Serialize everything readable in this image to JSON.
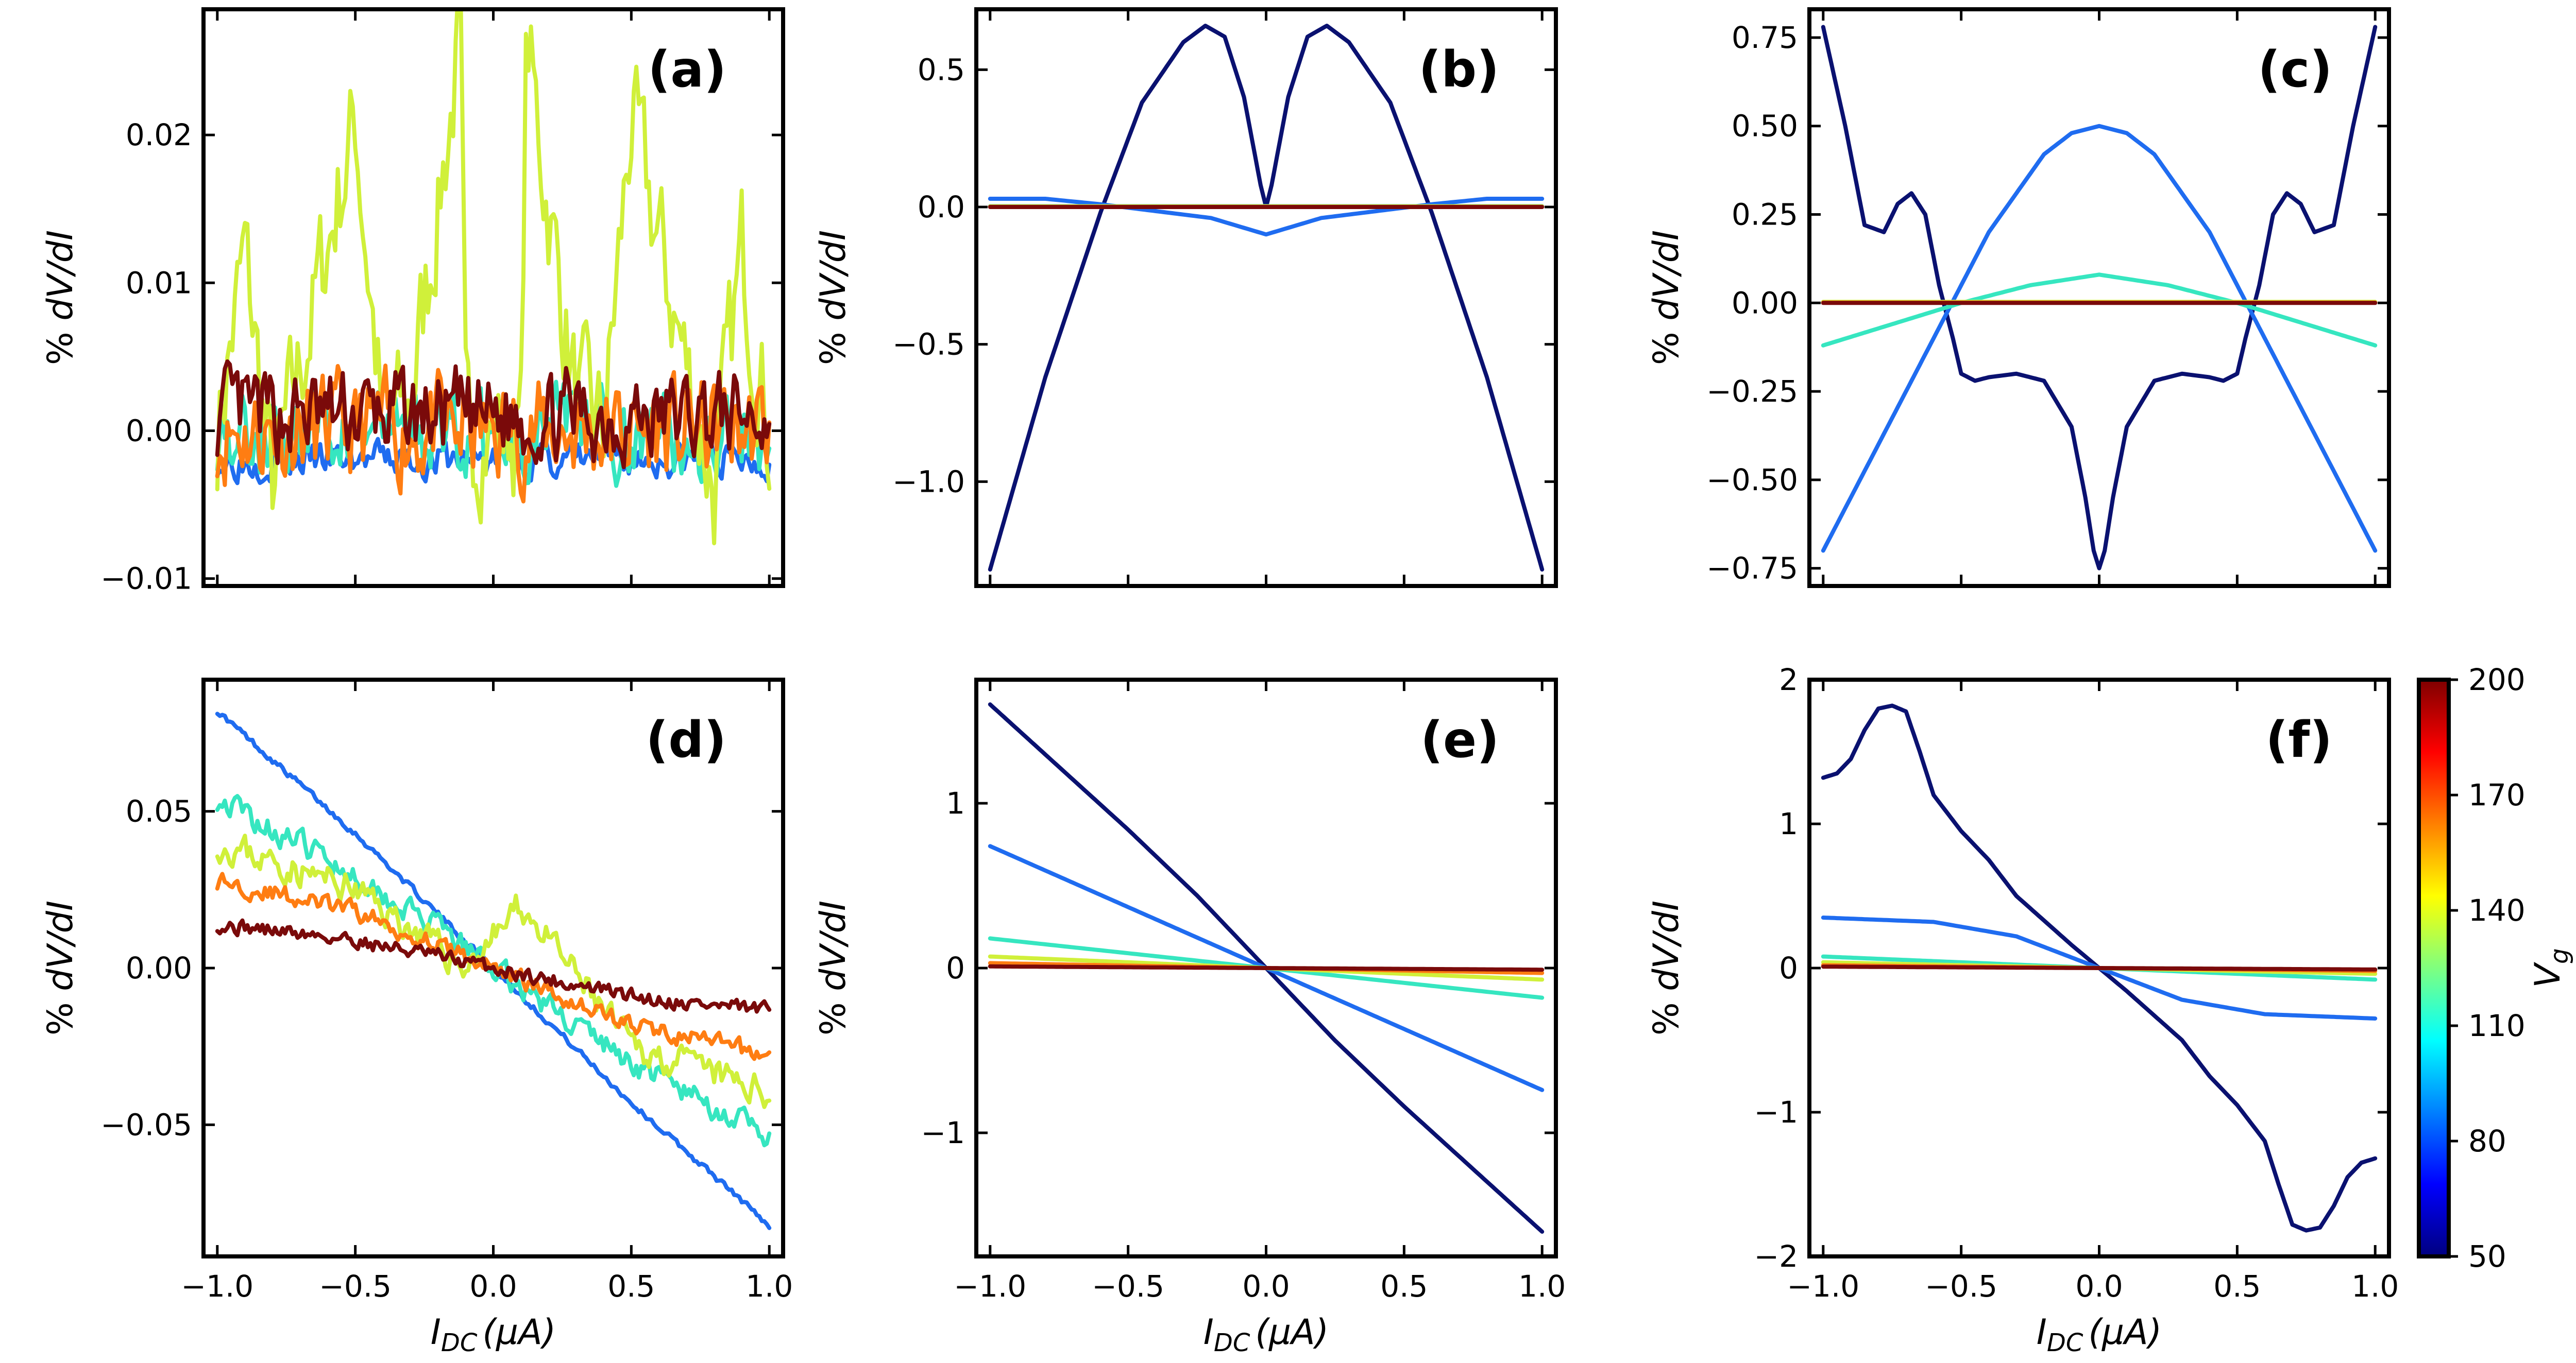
{
  "figure": {
    "colorbar": {
      "label": "V",
      "label_sub": "g",
      "ticks": [
        50,
        80,
        110,
        140,
        170,
        200
      ],
      "range": [
        50,
        200
      ],
      "colormap": "jet"
    },
    "series_colors": {
      "Vg_50": "#0a1170",
      "Vg_80": "#1f6cf0",
      "Vg_110": "#36e6c0",
      "Vg_140": "#d0f03a",
      "Vg_170": "#ff7d12",
      "Vg_200": "#7a0a0a"
    }
  },
  "chart_data": [
    {
      "id": "a",
      "type": "line",
      "panel_label": "(a)",
      "ylabel": "% dV/dI",
      "xlabel": "",
      "xlim": [
        -1.05,
        1.05
      ],
      "ylim": [
        -0.0105,
        0.0285
      ],
      "xticks": [
        -1.0,
        -0.5,
        0.0,
        0.5,
        1.0
      ],
      "xticklabels": [
        "",
        "",
        "",
        "",
        ""
      ],
      "yticks": [
        -0.01,
        0.0,
        0.01,
        0.02
      ],
      "yticklabels": [
        "−0.01",
        "0.00",
        "0.01",
        "0.02"
      ],
      "series": [
        {
          "name": "Vg=80",
          "color_key": "Vg_80",
          "amp": 0.0012,
          "seed": 3,
          "x": [
            -1.0,
            1.0
          ],
          "y": [
            -0.002,
            -0.002
          ]
        },
        {
          "name": "Vg=110",
          "color_key": "Vg_110",
          "amp": 0.003,
          "seed": 5,
          "x": [
            -1.0,
            1.0
          ],
          "y": [
            0.0,
            0.0
          ]
        },
        {
          "name": "Vg=140",
          "color_key": "Vg_140",
          "amp": 0.0045,
          "seed": 7,
          "x": [
            -1.0,
            -0.9,
            -0.8,
            -0.5,
            -0.4,
            -0.3,
            -0.15,
            -0.12,
            -0.1,
            0.1,
            0.12,
            0.15,
            0.3,
            0.4,
            0.5,
            0.8,
            0.9,
            1.0
          ],
          "y": [
            0.0,
            0.012,
            -0.004,
            0.021,
            0.0,
            0.002,
            0.022,
            0.027,
            0.0,
            0.0,
            0.027,
            0.022,
            0.002,
            0.0,
            0.021,
            -0.004,
            0.012,
            0.0
          ]
        },
        {
          "name": "Vg=170",
          "color_key": "Vg_170",
          "amp": 0.0035,
          "seed": 11,
          "x": [
            -1.0,
            1.0
          ],
          "y": [
            0.0,
            0.0
          ]
        },
        {
          "name": "Vg=200",
          "color_key": "Vg_200",
          "amp": 0.003,
          "seed": 13,
          "x": [
            -1.0,
            1.0
          ],
          "y": [
            0.001,
            0.001
          ]
        }
      ]
    },
    {
      "id": "b",
      "type": "line",
      "panel_label": "(b)",
      "ylabel": "% dV/dI",
      "xlabel": "",
      "xlim": [
        -1.05,
        1.05
      ],
      "ylim": [
        -1.38,
        0.72
      ],
      "xticks": [
        -1.0,
        -0.5,
        0.0,
        0.5,
        1.0
      ],
      "xticklabels": [
        "",
        "",
        "",
        "",
        ""
      ],
      "yticks": [
        -1.0,
        -0.5,
        0.0,
        0.5
      ],
      "yticklabels": [
        "−1.0",
        "−0.5",
        "0.0",
        "0.5"
      ],
      "series": [
        {
          "name": "Vg=50",
          "color_key": "Vg_50",
          "x": [
            -1.0,
            -0.8,
            -0.6,
            -0.45,
            -0.3,
            -0.22,
            -0.15,
            -0.08,
            -0.02,
            0.0,
            0.02,
            0.08,
            0.15,
            0.22,
            0.3,
            0.45,
            0.6,
            0.8,
            1.0
          ],
          "y": [
            -1.32,
            -0.62,
            -0.02,
            0.38,
            0.6,
            0.66,
            0.62,
            0.4,
            0.08,
            0.0,
            0.08,
            0.4,
            0.62,
            0.66,
            0.6,
            0.38,
            -0.02,
            -0.62,
            -1.32
          ]
        },
        {
          "name": "Vg=80",
          "color_key": "Vg_80",
          "x": [
            -1.0,
            -0.8,
            -0.6,
            -0.4,
            -0.2,
            -0.1,
            0.0,
            0.1,
            0.2,
            0.4,
            0.6,
            0.8,
            1.0
          ],
          "y": [
            0.03,
            0.03,
            0.01,
            -0.015,
            -0.04,
            -0.07,
            -0.1,
            -0.07,
            -0.04,
            -0.015,
            0.01,
            0.03,
            0.03
          ]
        },
        {
          "name": "Vg=110",
          "color_key": "Vg_110",
          "x": [
            -1.0,
            1.0
          ],
          "y": [
            0.003,
            0.003
          ]
        },
        {
          "name": "Vg=140",
          "color_key": "Vg_140",
          "x": [
            -1.0,
            1.0
          ],
          "y": [
            0.002,
            0.002
          ]
        },
        {
          "name": "Vg=170",
          "color_key": "Vg_170",
          "x": [
            -1.0,
            1.0
          ],
          "y": [
            0.001,
            0.001
          ]
        },
        {
          "name": "Vg=200",
          "color_key": "Vg_200",
          "x": [
            -1.0,
            1.0
          ],
          "y": [
            0.0,
            0.0
          ]
        }
      ]
    },
    {
      "id": "c",
      "type": "line",
      "panel_label": "(c)",
      "ylabel": "% dV/dI",
      "xlabel": "",
      "xlim": [
        -1.05,
        1.05
      ],
      "ylim": [
        -0.8,
        0.83
      ],
      "xticks": [
        -1.0,
        -0.5,
        0.0,
        0.5,
        1.0
      ],
      "xticklabels": [
        "",
        "",
        "",
        "",
        ""
      ],
      "yticks": [
        -0.75,
        -0.5,
        -0.25,
        0.0,
        0.25,
        0.5,
        0.75
      ],
      "yticklabels": [
        "−0.75",
        "−0.50",
        "−0.25",
        "0.00",
        "0.25",
        "0.50",
        "0.75"
      ],
      "series": [
        {
          "name": "Vg=50",
          "color_key": "Vg_50",
          "x": [
            -1.0,
            -0.92,
            -0.85,
            -0.78,
            -0.73,
            -0.68,
            -0.63,
            -0.58,
            -0.53,
            -0.5,
            -0.45,
            -0.4,
            -0.3,
            -0.2,
            -0.1,
            -0.05,
            -0.02,
            0.0,
            0.02,
            0.05,
            0.1,
            0.2,
            0.3,
            0.4,
            0.45,
            0.5,
            0.53,
            0.58,
            0.63,
            0.68,
            0.73,
            0.78,
            0.85,
            0.92,
            1.0
          ],
          "y": [
            0.78,
            0.5,
            0.22,
            0.2,
            0.28,
            0.31,
            0.25,
            0.05,
            -0.1,
            -0.2,
            -0.22,
            -0.21,
            -0.2,
            -0.22,
            -0.35,
            -0.55,
            -0.7,
            -0.75,
            -0.7,
            -0.55,
            -0.35,
            -0.22,
            -0.2,
            -0.21,
            -0.22,
            -0.2,
            -0.1,
            0.05,
            0.25,
            0.31,
            0.28,
            0.2,
            0.22,
            0.5,
            0.78
          ]
        },
        {
          "name": "Vg=80",
          "color_key": "Vg_80",
          "x": [
            -1.0,
            -0.8,
            -0.6,
            -0.4,
            -0.2,
            -0.1,
            0.0,
            0.1,
            0.2,
            0.4,
            0.6,
            0.8,
            1.0
          ],
          "y": [
            -0.7,
            -0.4,
            -0.1,
            0.2,
            0.42,
            0.48,
            0.5,
            0.48,
            0.42,
            0.2,
            -0.1,
            -0.4,
            -0.7
          ]
        },
        {
          "name": "Vg=110",
          "color_key": "Vg_110",
          "x": [
            -1.0,
            -0.75,
            -0.5,
            -0.25,
            0.0,
            0.25,
            0.5,
            0.75,
            1.0
          ],
          "y": [
            -0.12,
            -0.06,
            0.0,
            0.05,
            0.08,
            0.05,
            0.0,
            -0.06,
            -0.12
          ]
        },
        {
          "name": "Vg=140",
          "color_key": "Vg_140",
          "x": [
            -1.0,
            1.0
          ],
          "y": [
            0.003,
            0.003
          ]
        },
        {
          "name": "Vg=170",
          "color_key": "Vg_170",
          "x": [
            -1.0,
            1.0
          ],
          "y": [
            0.001,
            0.001
          ]
        },
        {
          "name": "Vg=200",
          "color_key": "Vg_200",
          "x": [
            -1.0,
            1.0
          ],
          "y": [
            0.0,
            0.0
          ]
        }
      ]
    },
    {
      "id": "d",
      "type": "line",
      "panel_label": "(d)",
      "ylabel": "% dV/dI",
      "xlabel": "I_DC (μA)",
      "xlim": [
        -1.05,
        1.05
      ],
      "ylim": [
        -0.092,
        0.092
      ],
      "xticks": [
        -1.0,
        -0.5,
        0.0,
        0.5,
        1.0
      ],
      "xticklabels": [
        "−1.0",
        "−0.5",
        "0.0",
        "0.5",
        "1.0"
      ],
      "yticks": [
        -0.05,
        0.0,
        0.05
      ],
      "yticklabels": [
        "−0.05",
        "0.00",
        "0.05"
      ],
      "series": [
        {
          "name": "Vg=80",
          "color_key": "Vg_80",
          "amp": 0.001,
          "seed": 17,
          "x": [
            -1.0,
            -0.5,
            0.0,
            0.5,
            1.0
          ],
          "y": [
            0.082,
            0.043,
            0.0,
            -0.043,
            -0.082
          ]
        },
        {
          "name": "Vg=110",
          "color_key": "Vg_110",
          "amp": 0.004,
          "seed": 19,
          "x": [
            -1.0,
            -0.5,
            0.0,
            0.5,
            1.0
          ],
          "y": [
            0.054,
            0.03,
            0.0,
            -0.03,
            -0.054
          ]
        },
        {
          "name": "Vg=140",
          "color_key": "Vg_140",
          "amp": 0.005,
          "seed": 23,
          "x": [
            -1.0,
            -0.5,
            -0.1,
            0.1,
            0.5,
            1.0
          ],
          "y": [
            0.04,
            0.025,
            0.0,
            0.02,
            -0.025,
            -0.04
          ]
        },
        {
          "name": "Vg=170",
          "color_key": "Vg_170",
          "amp": 0.003,
          "seed": 29,
          "x": [
            -1.0,
            -0.5,
            0.0,
            0.5,
            1.0
          ],
          "y": [
            0.028,
            0.018,
            0.0,
            -0.018,
            -0.028
          ]
        },
        {
          "name": "Vg=200",
          "color_key": "Vg_200",
          "amp": 0.0025,
          "seed": 31,
          "x": [
            -1.0,
            -0.5,
            0.0,
            0.5,
            1.0
          ],
          "y": [
            0.014,
            0.009,
            0.0,
            -0.009,
            -0.014
          ]
        }
      ]
    },
    {
      "id": "e",
      "type": "line",
      "panel_label": "(e)",
      "ylabel": "% dV/dI",
      "xlabel": "I_DC (μA)",
      "xlim": [
        -1.05,
        1.05
      ],
      "ylim": [
        -1.75,
        1.75
      ],
      "xticks": [
        -1.0,
        -0.5,
        0.0,
        0.5,
        1.0
      ],
      "xticklabels": [
        "−1.0",
        "−0.5",
        "0.0",
        "0.5",
        "1.0"
      ],
      "yticks": [
        -1,
        0,
        1
      ],
      "yticklabels": [
        "−1",
        "0",
        "1"
      ],
      "series": [
        {
          "name": "Vg=50",
          "color_key": "Vg_50",
          "x": [
            -1.0,
            -0.75,
            -0.5,
            -0.25,
            0.0,
            0.25,
            0.5,
            0.75,
            1.0
          ],
          "y": [
            1.6,
            1.22,
            0.84,
            0.44,
            0.0,
            -0.44,
            -0.84,
            -1.22,
            -1.6
          ]
        },
        {
          "name": "Vg=80",
          "color_key": "Vg_80",
          "x": [
            -1.0,
            0.0,
            1.0
          ],
          "y": [
            0.74,
            0.0,
            -0.74
          ]
        },
        {
          "name": "Vg=110",
          "color_key": "Vg_110",
          "x": [
            -1.0,
            0.0,
            1.0
          ],
          "y": [
            0.18,
            0.0,
            -0.18
          ]
        },
        {
          "name": "Vg=140",
          "color_key": "Vg_140",
          "x": [
            -1.0,
            0.0,
            1.0
          ],
          "y": [
            0.07,
            0.0,
            -0.07
          ]
        },
        {
          "name": "Vg=170",
          "color_key": "Vg_170",
          "x": [
            -1.0,
            0.0,
            1.0
          ],
          "y": [
            0.03,
            0.0,
            -0.03
          ]
        },
        {
          "name": "Vg=200",
          "color_key": "Vg_200",
          "x": [
            -1.0,
            0.0,
            1.0
          ],
          "y": [
            0.01,
            0.0,
            -0.01
          ]
        }
      ]
    },
    {
      "id": "f",
      "type": "line",
      "panel_label": "(f)",
      "ylabel": "% dV/dI",
      "xlabel": "I_DC (μA)",
      "xlim": [
        -1.05,
        1.05
      ],
      "ylim": [
        -2.0,
        2.0
      ],
      "xticks": [
        -1.0,
        -0.5,
        0.0,
        0.5,
        1.0
      ],
      "xticklabels": [
        "−1.0",
        "−0.5",
        "0.0",
        "0.5",
        "1.0"
      ],
      "yticks": [
        -2,
        -1,
        0,
        1,
        2
      ],
      "yticklabels": [
        "−2",
        "−1",
        "0",
        "1",
        "2"
      ],
      "series": [
        {
          "name": "Vg=50",
          "color_key": "Vg_50",
          "x": [
            -1.0,
            -0.95,
            -0.9,
            -0.85,
            -0.8,
            -0.75,
            -0.7,
            -0.65,
            -0.6,
            -0.5,
            -0.4,
            -0.3,
            -0.2,
            -0.1,
            0.0,
            0.1,
            0.2,
            0.3,
            0.4,
            0.5,
            0.6,
            0.65,
            0.7,
            0.75,
            0.8,
            0.85,
            0.9,
            0.95,
            1.0
          ],
          "y": [
            1.32,
            1.35,
            1.45,
            1.65,
            1.8,
            1.82,
            1.78,
            1.5,
            1.2,
            0.95,
            0.75,
            0.5,
            0.33,
            0.16,
            0.0,
            -0.16,
            -0.33,
            -0.5,
            -0.75,
            -0.95,
            -1.2,
            -1.5,
            -1.78,
            -1.82,
            -1.8,
            -1.65,
            -1.45,
            -1.35,
            -1.32
          ]
        },
        {
          "name": "Vg=80",
          "color_key": "Vg_80",
          "x": [
            -1.0,
            -0.6,
            -0.3,
            0.0,
            0.3,
            0.6,
            1.0
          ],
          "y": [
            0.35,
            0.32,
            0.22,
            0.0,
            -0.22,
            -0.32,
            -0.35
          ]
        },
        {
          "name": "Vg=110",
          "color_key": "Vg_110",
          "x": [
            -1.0,
            0.0,
            1.0
          ],
          "y": [
            0.08,
            0.0,
            -0.08
          ]
        },
        {
          "name": "Vg=140",
          "color_key": "Vg_140",
          "x": [
            -1.0,
            0.0,
            1.0
          ],
          "y": [
            0.04,
            0.0,
            -0.04
          ]
        },
        {
          "name": "Vg=170",
          "color_key": "Vg_170",
          "x": [
            -1.0,
            0.0,
            1.0
          ],
          "y": [
            0.02,
            0.0,
            -0.02
          ]
        },
        {
          "name": "Vg=200",
          "color_key": "Vg_200",
          "x": [
            -1.0,
            0.0,
            1.0
          ],
          "y": [
            0.01,
            0.0,
            -0.01
          ]
        }
      ]
    }
  ]
}
